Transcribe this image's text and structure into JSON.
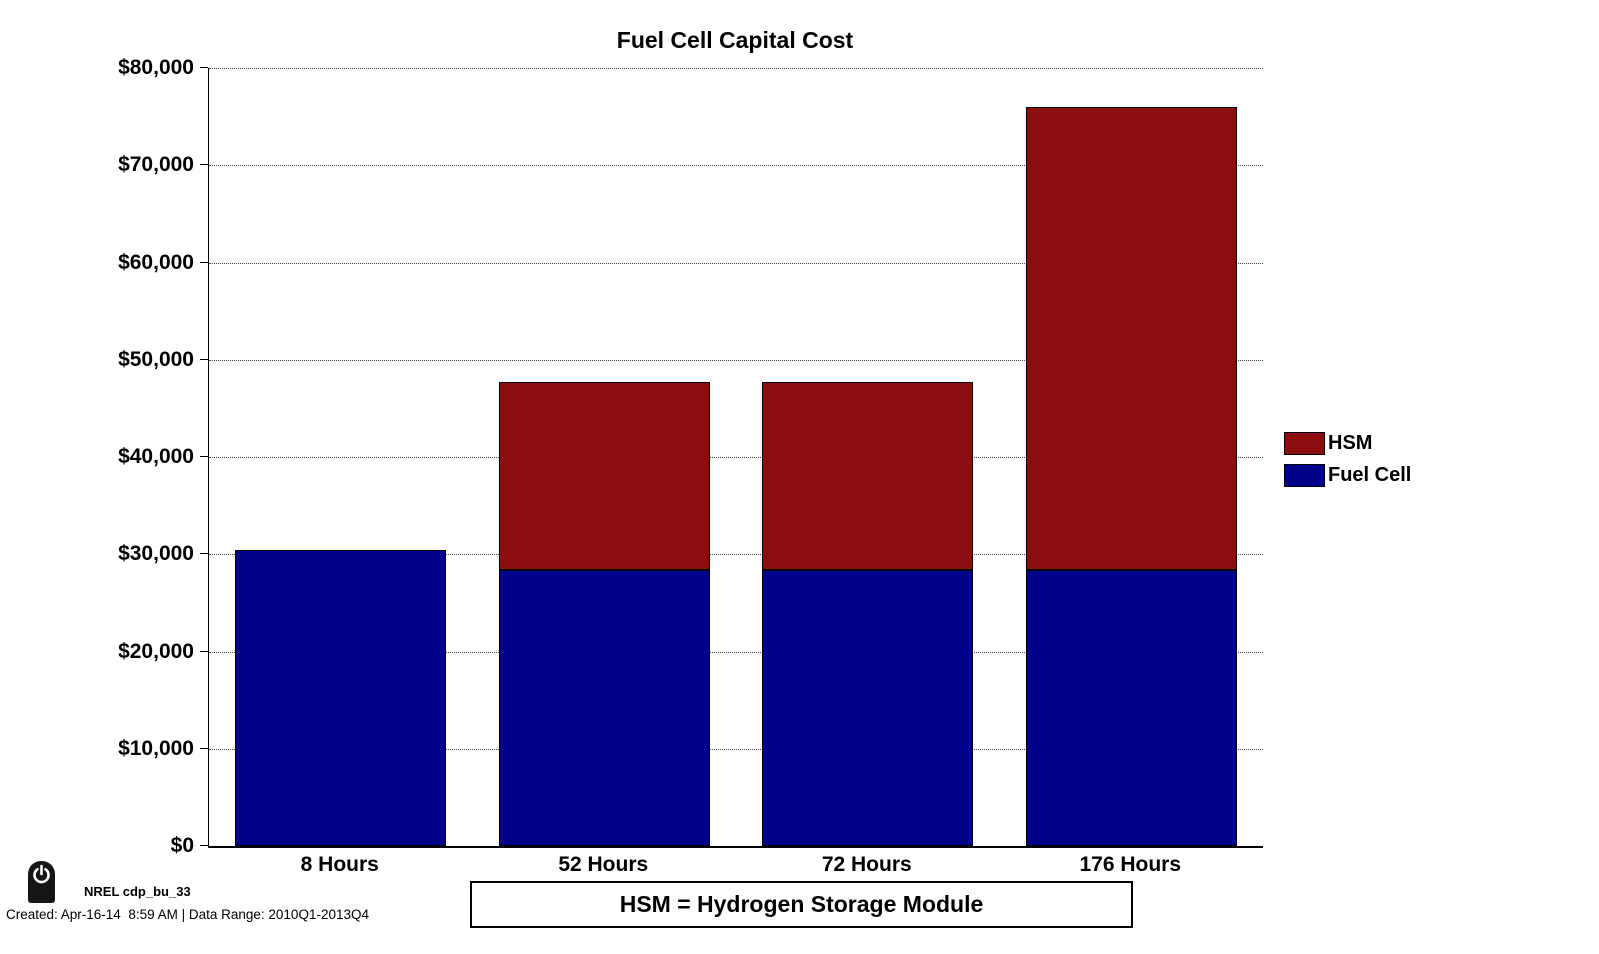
{
  "chart_data": {
    "type": "bar",
    "stacked": true,
    "title": "Fuel Cell Capital Cost",
    "categories": [
      "8 Hours",
      "52 Hours",
      "72 Hours",
      "176 Hours"
    ],
    "series": [
      {
        "name": "Fuel Cell",
        "color": "#00008C",
        "values": [
          30400,
          28400,
          28400,
          28400
        ]
      },
      {
        "name": "HSM",
        "color": "#8B0D0D",
        "values": [
          0,
          19300,
          19300,
          47600
        ]
      }
    ],
    "totals": [
      30400,
      47700,
      47700,
      76000
    ],
    "xlabel": "",
    "ylabel": "",
    "ylim": [
      0,
      80000
    ],
    "ytick_step": 10000,
    "ytick_labels": [
      "$0",
      "$10,000",
      "$20,000",
      "$30,000",
      "$40,000",
      "$50,000",
      "$60,000",
      "$70,000",
      "$80,000"
    ],
    "grid": "horizontal-dotted",
    "legend_position": "right-outside",
    "bar_width_fraction": 0.8
  },
  "legend": {
    "items": [
      {
        "label": "HSM",
        "color": "#8B0D0D"
      },
      {
        "label": "Fuel Cell",
        "color": "#00008C"
      }
    ]
  },
  "footer": {
    "note": "HSM = Hydrogen Storage Module",
    "source_id": "NREL cdp_bu_33",
    "created": "Created: Apr-16-14  8:59 AM | Data Range: 2010Q1-2013Q4",
    "logo_icon": "power-icon"
  },
  "colors": {
    "hsm": "#8B0D0D",
    "fuel_cell": "#00008C",
    "gridline": "#444444",
    "axis": "#000000",
    "background": "#FFFFFF"
  }
}
